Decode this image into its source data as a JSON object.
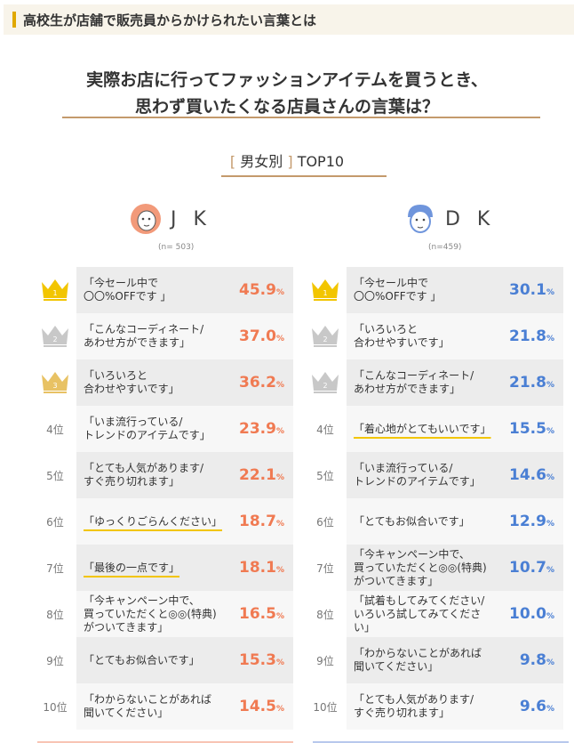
{
  "header": {
    "title": "高校生が店舗で販売員からかけられたい言葉とは"
  },
  "question": "実際お店に行ってファッションアイテムを買うとき、\n思わず買いたくなる店員さんの言葉は？",
  "subtitle": {
    "category": "男女別",
    "label": "TOP10"
  },
  "colors": {
    "jk": "#f07a52",
    "dk": "#4a7fd4",
    "gold": "#f2c500",
    "silver": "#c8c8c8",
    "bronze": "#e8c264",
    "underline": "#f2c500"
  },
  "jk": {
    "label": "J K",
    "n": "(n= 503)",
    "icon": "girl-face-icon",
    "items": [
      {
        "rank": "1",
        "phrase": "「今セール中で\n〇〇%OFFです 」",
        "value": "45.9",
        "unit": "%"
      },
      {
        "rank": "2",
        "phrase": "「こんなコーディネート/\nあわせ方ができます」",
        "value": "37.0",
        "unit": "%"
      },
      {
        "rank": "3",
        "phrase": "「いろいろと\n合わせやすいです」",
        "value": "36.2",
        "unit": "%"
      },
      {
        "rank": "4位",
        "phrase": "「いま流行っている/\nトレンドのアイテムです」",
        "value": "23.9",
        "unit": "%"
      },
      {
        "rank": "5位",
        "phrase": "「とても人気があります/\nすぐ売り切れます」",
        "value": "22.1",
        "unit": "%"
      },
      {
        "rank": "6位",
        "phrase": "「ゆっくりごらんください」",
        "value": "18.7",
        "unit": "%",
        "underline": true
      },
      {
        "rank": "7位",
        "phrase": "「最後の一点です」",
        "value": "18.1",
        "unit": "%",
        "underline": true
      },
      {
        "rank": "8位",
        "phrase": "「今キャンペーン中で、\n買っていただくと◎◎(特典)\nがついてきます」",
        "value": "16.5",
        "unit": "%"
      },
      {
        "rank": "9位",
        "phrase": "「とてもお似合いです」",
        "value": "15.3",
        "unit": "%"
      },
      {
        "rank": "10位",
        "phrase": "「わからないことがあれば\n聞いてください」",
        "value": "14.5",
        "unit": "%"
      }
    ]
  },
  "dk": {
    "label": "D K",
    "n": "(n=459)",
    "icon": "boy-face-icon",
    "items": [
      {
        "rank": "1",
        "phrase": "「今セール中で\n〇〇%OFFです 」",
        "value": "30.1",
        "unit": "%"
      },
      {
        "rank": "2",
        "phrase": "「いろいろと\n合わせやすいです」",
        "value": "21.8",
        "unit": "%"
      },
      {
        "rank": "2",
        "phrase": "「こんなコーディネート/\nあわせ方ができます」",
        "value": "21.8",
        "unit": "%"
      },
      {
        "rank": "4位",
        "phrase": "「着心地がとてもいいです」",
        "value": "15.5",
        "unit": "%",
        "underline": true
      },
      {
        "rank": "5位",
        "phrase": "「いま流行っている/\nトレンドのアイテムです」",
        "value": "14.6",
        "unit": "%"
      },
      {
        "rank": "6位",
        "phrase": "「とてもお似合いです」",
        "value": "12.9",
        "unit": "%"
      },
      {
        "rank": "7位",
        "phrase": "「今キャンペーン中で、\n買っていただくと◎◎(特典)\nがついてきます」",
        "value": "10.7",
        "unit": "%"
      },
      {
        "rank": "8位",
        "phrase": "「試着もしてみてください/\nいろいろ試してみてください」",
        "value": "10.0",
        "unit": "%"
      },
      {
        "rank": "9位",
        "phrase": "「わからないことがあれば\n聞いてください」",
        "value": "9.8",
        "unit": "%"
      },
      {
        "rank": "10位",
        "phrase": "「とても人気があります/\nすぐ売り切れます」",
        "value": "9.6",
        "unit": "%"
      }
    ]
  }
}
